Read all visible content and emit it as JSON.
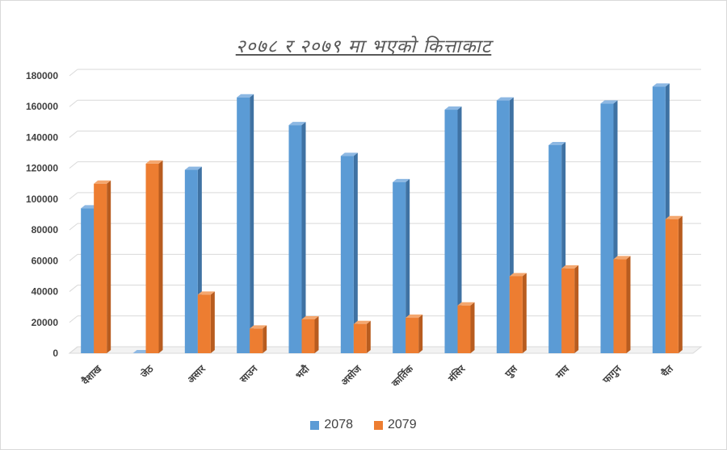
{
  "chart_data": {
    "type": "bar",
    "title": "२०७८ र २०७९ मा भएको कित्ताकाट",
    "categories": [
      "वैशाख",
      "जेठ",
      "असार",
      "साउन",
      "भदौ",
      "असोज",
      "कार्तिक",
      "मंसिर",
      "पुस",
      "माघ",
      "फागुन",
      "चैत"
    ],
    "series": [
      {
        "name": "2078",
        "color": "#5b9bd5",
        "values": [
          94000,
          0,
          119000,
          166000,
          148000,
          128000,
          111000,
          158000,
          164000,
          135000,
          162000,
          173000
        ]
      },
      {
        "name": "2079",
        "color": "#ed7d31",
        "values": [
          110000,
          123000,
          38000,
          16000,
          22000,
          19000,
          23000,
          31000,
          50000,
          55000,
          61000,
          87000
        ]
      }
    ],
    "yticks": [
      "0",
      "20000",
      "40000",
      "60000",
      "80000",
      "100000",
      "120000",
      "140000",
      "160000",
      "180000"
    ],
    "ylim": [
      0,
      180000
    ],
    "grid": true,
    "legend_position": "bottom",
    "style": "3d-column"
  }
}
